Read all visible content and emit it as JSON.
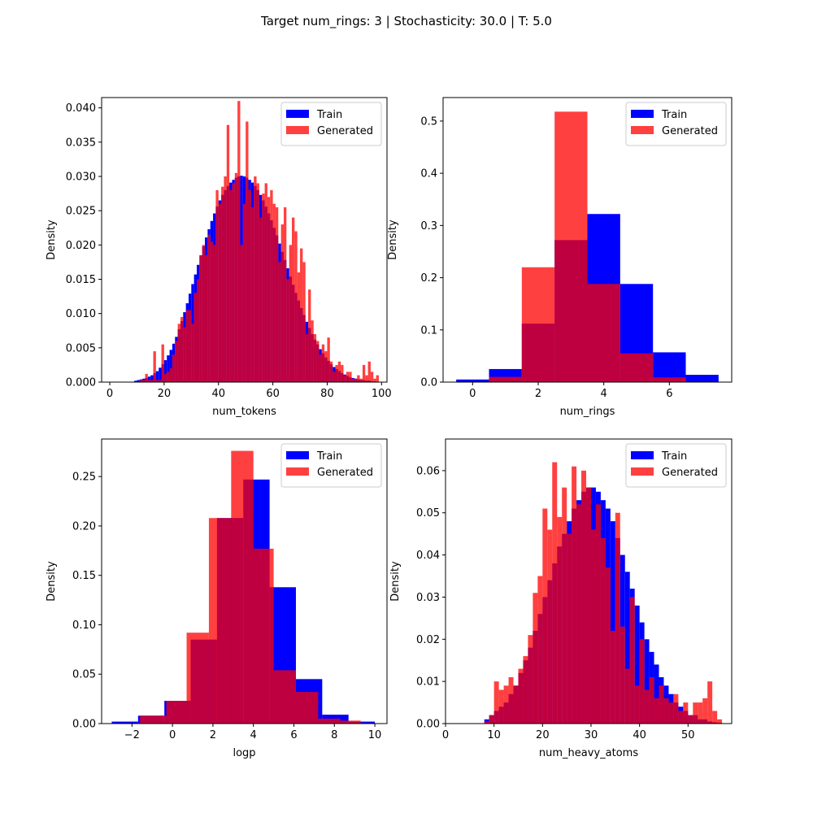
{
  "figure": {
    "title": "Target num_rings: 3 | Stochasticity: 30.0 | T: 5.0"
  },
  "colors": {
    "train": "#0000ff",
    "generated": "#ff0000",
    "generated_alpha": 0.75
  },
  "chart_data": [
    {
      "type": "bar",
      "histogram": true,
      "xlabel": "num_tokens",
      "ylabel": "Density",
      "xlim": [
        -3,
        102
      ],
      "ylim": [
        0,
        0.0415
      ],
      "xticks": [
        0,
        20,
        40,
        60,
        80,
        100
      ],
      "yticks": [
        0.0,
        0.005,
        0.01,
        0.015,
        0.02,
        0.025,
        0.03,
        0.035,
        0.04
      ],
      "ytick_labels": [
        "0.000",
        "0.005",
        "0.010",
        "0.015",
        "0.020",
        "0.025",
        "0.030",
        "0.035",
        "0.040"
      ],
      "legend": {
        "position": "top-right",
        "entries": [
          "Train",
          "Generated"
        ]
      },
      "series": [
        {
          "name": "Train",
          "bins": {
            "start": 9,
            "width": 1
          },
          "values": [
            0.0002,
            0.0003,
            0.0004,
            0.0005,
            0.0006,
            0.0008,
            0.001,
            0.0013,
            0.0016,
            0.0021,
            0.0026,
            0.0032,
            0.0039,
            0.0047,
            0.0056,
            0.0066,
            0.0077,
            0.0089,
            0.0102,
            0.0115,
            0.0129,
            0.0143,
            0.0157,
            0.0171,
            0.0185,
            0.0198,
            0.0211,
            0.0223,
            0.0235,
            0.0246,
            0.0256,
            0.0265,
            0.0273,
            0.028,
            0.0286,
            0.0291,
            0.0295,
            0.0298,
            0.03,
            0.0301,
            0.03,
            0.0298,
            0.0295,
            0.0291,
            0.0286,
            0.028,
            0.0273,
            0.0265,
            0.0256,
            0.0246,
            0.0236,
            0.0225,
            0.0214,
            0.0202,
            0.019,
            0.0178,
            0.0166,
            0.0154,
            0.0142,
            0.013,
            0.0119,
            0.0108,
            0.0098,
            0.0088,
            0.0079,
            0.007,
            0.0062,
            0.0055,
            0.0048,
            0.0042,
            0.0036,
            0.0031,
            0.0026,
            0.0022,
            0.0019,
            0.0016,
            0.0013,
            0.0011,
            0.0009,
            0.0007,
            0.0006,
            0.0005,
            0.0004,
            0.0003,
            0.0003,
            0.0002,
            0.0002,
            0.0001,
            0.0001
          ]
        },
        {
          "name": "Generated",
          "bins": {
            "start": 11,
            "width": 1
          },
          "values": [
            0.0003,
            0.0003,
            0.0012,
            0.0003,
            0.0003,
            0.0045,
            0.0003,
            0.0003,
            0.0055,
            0.0012,
            0.0015,
            0.002,
            0.004,
            0.006,
            0.0085,
            0.0095,
            0.008,
            0.0105,
            0.0105,
            0.0085,
            0.013,
            0.015,
            0.0185,
            0.02,
            0.0185,
            0.0215,
            0.0205,
            0.02,
            0.028,
            0.026,
            0.0285,
            0.03,
            0.0375,
            0.028,
            0.029,
            0.0305,
            0.041,
            0.02,
            0.026,
            0.038,
            0.028,
            0.0255,
            0.03,
            0.029,
            0.024,
            0.0275,
            0.029,
            0.027,
            0.028,
            0.026,
            0.0255,
            0.0175,
            0.023,
            0.0255,
            0.015,
            0.02,
            0.024,
            0.022,
            0.016,
            0.0195,
            0.0175,
            0.007,
            0.0135,
            0.009,
            0.007,
            0.006,
            0.004,
            0.0055,
            0.0045,
            0.0065,
            0.003,
            0.0015,
            0.0025,
            0.003,
            0.0025,
            0.001,
            0.0015,
            0.0015,
            0.0005,
            0.0005,
            0.001,
            0.0005,
            0.0025,
            0.001,
            0.003,
            0.0015,
            0.0005,
            0.001
          ]
        }
      ]
    },
    {
      "type": "bar",
      "histogram": true,
      "xlabel": "num_rings",
      "ylabel": "Density",
      "xlim": [
        -0.9,
        7.9
      ],
      "ylim": [
        0,
        0.545
      ],
      "xticks": [
        0,
        2,
        4,
        6
      ],
      "yticks": [
        0.0,
        0.1,
        0.2,
        0.3,
        0.4,
        0.5
      ],
      "ytick_labels": [
        "0.0",
        "0.1",
        "0.2",
        "0.3",
        "0.4",
        "0.5"
      ],
      "legend": {
        "position": "top-right",
        "entries": [
          "Train",
          "Generated"
        ]
      },
      "series": [
        {
          "name": "Train",
          "bin_edges": [
            -0.5,
            0.5,
            1.5,
            2.5,
            3.5,
            4.5,
            5.5,
            6.5,
            7.5
          ],
          "values": [
            0.005,
            0.025,
            0.112,
            0.272,
            0.322,
            0.188,
            0.057,
            0.014
          ]
        },
        {
          "name": "Generated",
          "bin_edges": [
            0.5,
            1.5,
            2.5,
            3.5,
            4.5,
            5.5,
            6.5
          ],
          "values": [
            0.01,
            0.22,
            0.518,
            0.188,
            0.055,
            0.009
          ]
        }
      ]
    },
    {
      "type": "bar",
      "histogram": true,
      "xlabel": "logp",
      "ylabel": "Density",
      "xlim": [
        -3.5,
        10.6
      ],
      "ylim": [
        0,
        0.288
      ],
      "xticks": [
        -2,
        0,
        2,
        4,
        6,
        8,
        10
      ],
      "yticks": [
        0.0,
        0.05,
        0.1,
        0.15,
        0.2,
        0.25
      ],
      "ytick_labels": [
        "0.00",
        "0.05",
        "0.10",
        "0.15",
        "0.20",
        "0.25"
      ],
      "legend": {
        "position": "top-right",
        "entries": [
          "Train",
          "Generated"
        ]
      },
      "series": [
        {
          "name": "Train",
          "bin_edges": [
            -3.0,
            -1.7,
            -0.4,
            0.9,
            2.2,
            3.5,
            4.8,
            6.1,
            7.4,
            8.7,
            10.0
          ],
          "values": [
            0.002,
            0.008,
            0.023,
            0.085,
            0.208,
            0.247,
            0.138,
            0.045,
            0.009,
            0.002
          ]
        },
        {
          "name": "Generated",
          "bin_edges": [
            -1.6,
            -0.3,
            0.7,
            1.8,
            2.9,
            4.0,
            5.0,
            6.1,
            7.2,
            8.3,
            9.3
          ],
          "values": [
            0.008,
            0.023,
            0.092,
            0.208,
            0.276,
            0.177,
            0.054,
            0.032,
            0.005,
            0.003
          ]
        }
      ]
    },
    {
      "type": "bar",
      "histogram": true,
      "xlabel": "num_heavy_atoms",
      "ylabel": "Density",
      "xlim": [
        0,
        59
      ],
      "ylim": [
        0,
        0.0675
      ],
      "xticks": [
        0,
        10,
        20,
        30,
        40,
        50
      ],
      "yticks": [
        0.0,
        0.01,
        0.02,
        0.03,
        0.04,
        0.05,
        0.06
      ],
      "ytick_labels": [
        "0.00",
        "0.01",
        "0.02",
        "0.03",
        "0.04",
        "0.05",
        "0.06"
      ],
      "legend": {
        "position": "top-right",
        "entries": [
          "Train",
          "Generated"
        ]
      },
      "series": [
        {
          "name": "Train",
          "bins": {
            "start": 8,
            "width": 1
          },
          "values": [
            0.001,
            0.002,
            0.003,
            0.004,
            0.005,
            0.007,
            0.009,
            0.012,
            0.015,
            0.018,
            0.022,
            0.026,
            0.03,
            0.034,
            0.038,
            0.042,
            0.045,
            0.048,
            0.051,
            0.053,
            0.055,
            0.056,
            0.056,
            0.055,
            0.053,
            0.051,
            0.048,
            0.044,
            0.04,
            0.036,
            0.032,
            0.028,
            0.024,
            0.02,
            0.017,
            0.014,
            0.011,
            0.009,
            0.007,
            0.005,
            0.004,
            0.003,
            0.002,
            0.002,
            0.001,
            0.001,
            0.0005,
            0.0003,
            0.0002
          ]
        },
        {
          "name": "Generated",
          "bins": {
            "start": 8,
            "width": 1
          },
          "values": [
            0.0005,
            0.002,
            0.01,
            0.008,
            0.009,
            0.011,
            0.009,
            0.013,
            0.016,
            0.021,
            0.031,
            0.035,
            0.051,
            0.046,
            0.062,
            0.049,
            0.056,
            0.045,
            0.061,
            0.052,
            0.06,
            0.056,
            0.046,
            0.052,
            0.044,
            0.037,
            0.022,
            0.05,
            0.023,
            0.013,
            0.03,
            0.009,
            0.02,
            0.008,
            0.011,
            0.006,
            0.009,
            0.006,
            0.005,
            0.007,
            0.003,
            0.005,
            0.002,
            0.005,
            0.005,
            0.006,
            0.01,
            0.003,
            0.001
          ]
        }
      ]
    }
  ]
}
